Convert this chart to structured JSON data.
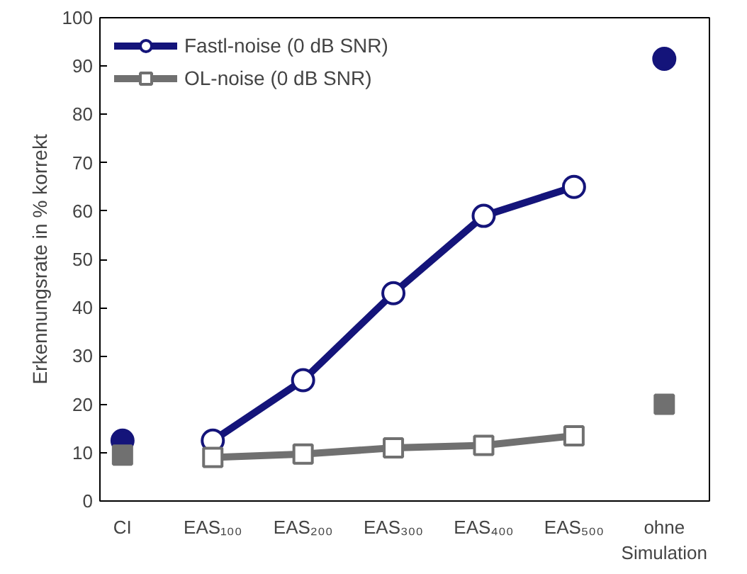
{
  "chart_data": {
    "type": "line",
    "ylabel": "Erkennungsrate in % korrekt",
    "categories": [
      "CI",
      "EAS₁₀₀",
      "EAS₂₀₀",
      "EAS₃₀₀",
      "EAS₄₀₀",
      "EAS₅₀₀",
      "ohne\nSimulation"
    ],
    "ylim": [
      0,
      100
    ],
    "yticks": [
      0,
      10,
      20,
      30,
      40,
      50,
      60,
      70,
      80,
      90,
      100
    ],
    "grid": false,
    "legend": "top left",
    "line_style": "solid",
    "series": [
      {
        "name": "Fastl-noise (0 dB SNR)",
        "marker": "circle",
        "color": "#14147a",
        "values": [
          null,
          12.5,
          25,
          43,
          59,
          65,
          null
        ]
      },
      {
        "name": "OL-noise (0 dB SNR)",
        "marker": "square",
        "color": "#707070",
        "values": [
          null,
          9,
          9.7,
          11,
          11.5,
          13.5,
          null
        ]
      },
      {
        "type": "scatter",
        "marker": "circle",
        "color": "#14147a",
        "values": [
          12.5,
          null,
          null,
          null,
          null,
          null,
          91.5
        ]
      },
      {
        "type": "scatter",
        "marker": "square",
        "color": "#707070",
        "values": [
          9.5,
          null,
          null,
          null,
          null,
          null,
          20
        ]
      }
    ]
  }
}
